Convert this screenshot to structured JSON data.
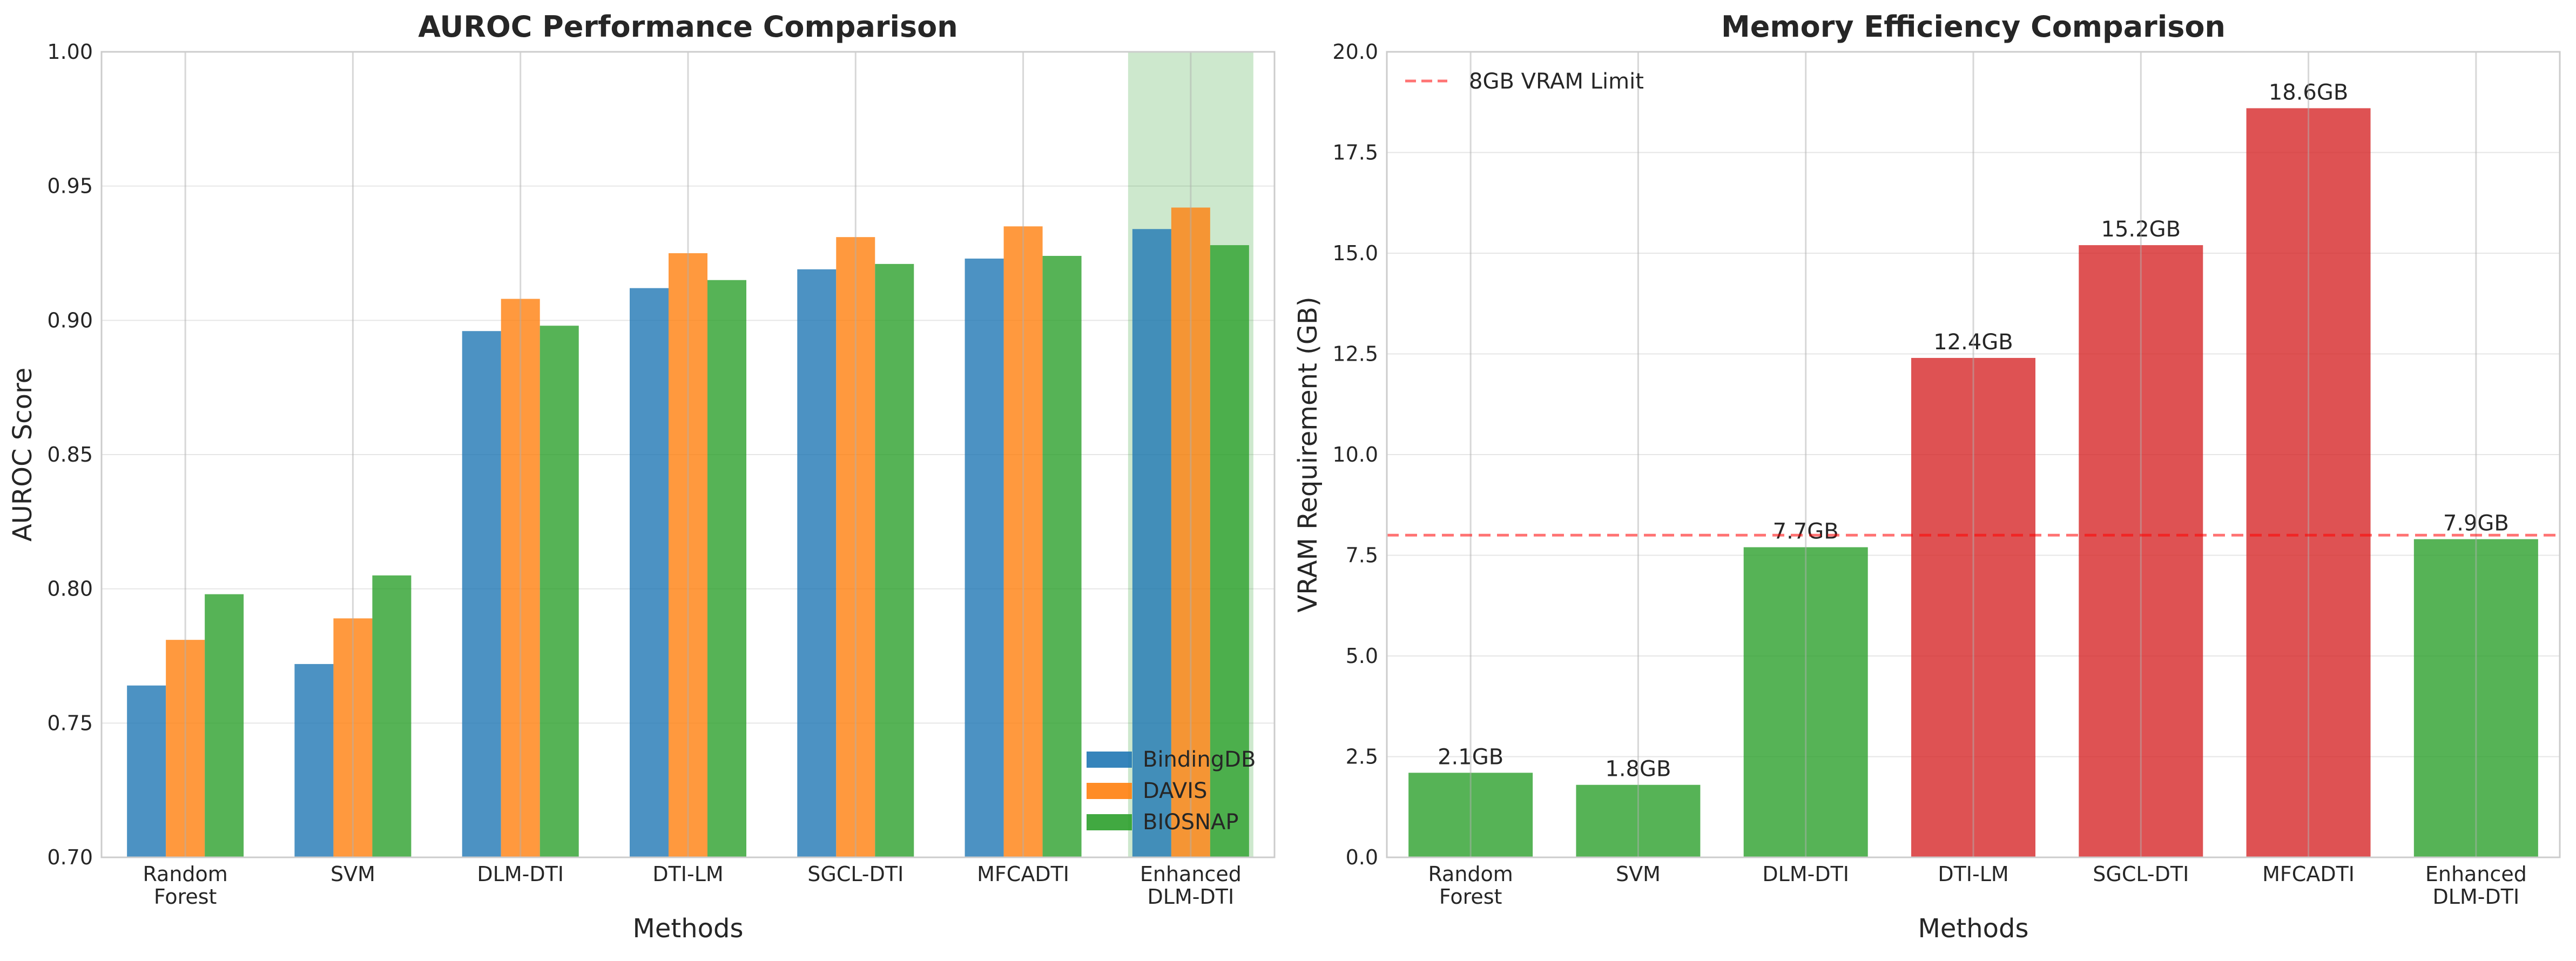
{
  "chart_data": [
    {
      "type": "bar",
      "title": "AUROC Performance Comparison",
      "xlabel": "Methods",
      "ylabel": "AUROC Score",
      "ylim": [
        0.7,
        1.0
      ],
      "yticks": [
        "0.70",
        "0.75",
        "0.80",
        "0.85",
        "0.90",
        "0.95",
        "1.00"
      ],
      "grid": true,
      "legend_position": "bottom-right",
      "categories": [
        [
          "Random",
          "Forest"
        ],
        [
          "SVM"
        ],
        [
          "DLM-DTI"
        ],
        [
          "DTI-LM"
        ],
        [
          "SGCL-DTI"
        ],
        [
          "MFCADTI"
        ],
        [
          "Enhanced",
          "DLM-DTI"
        ]
      ],
      "highlight_category": 6,
      "highlight_color": "#2ca02c",
      "series": [
        {
          "name": "BindingDB",
          "color": "#1f77b4",
          "values": [
            0.764,
            0.772,
            0.896,
            0.912,
            0.919,
            0.923,
            0.934
          ]
        },
        {
          "name": "DAVIS",
          "color": "#ff7f0e",
          "values": [
            0.781,
            0.789,
            0.908,
            0.925,
            0.931,
            0.935,
            0.942
          ]
        },
        {
          "name": "BIOSNAP",
          "color": "#2ca02c",
          "values": [
            0.798,
            0.805,
            0.898,
            0.915,
            0.921,
            0.924,
            0.928
          ]
        }
      ]
    },
    {
      "type": "bar",
      "title": "Memory Efficiency Comparison",
      "xlabel": "Methods",
      "ylabel": "VRAM Requirement (GB)",
      "ylim": [
        0,
        20
      ],
      "yticks": [
        "0.0",
        "2.5",
        "5.0",
        "7.5",
        "10.0",
        "12.5",
        "15.0",
        "17.5",
        "20.0"
      ],
      "grid": true,
      "legend_position": "top-left",
      "categories": [
        [
          "Random",
          "Forest"
        ],
        [
          "SVM"
        ],
        [
          "DLM-DTI"
        ],
        [
          "DTI-LM"
        ],
        [
          "SGCL-DTI"
        ],
        [
          "MFCADTI"
        ],
        [
          "Enhanced",
          "DLM-DTI"
        ]
      ],
      "values": [
        2.1,
        1.8,
        7.7,
        12.4,
        15.2,
        18.6,
        7.9
      ],
      "data_labels": [
        "2.1GB",
        "1.8GB",
        "7.7GB",
        "12.4GB",
        "15.2GB",
        "18.6GB",
        "7.9GB"
      ],
      "colors": [
        "#2ca02c",
        "#2ca02c",
        "#2ca02c",
        "#d62728",
        "#d62728",
        "#d62728",
        "#2ca02c"
      ],
      "reference_line": {
        "value": 8,
        "label": "8GB VRAM Limit",
        "color": "#ff0000"
      }
    }
  ]
}
